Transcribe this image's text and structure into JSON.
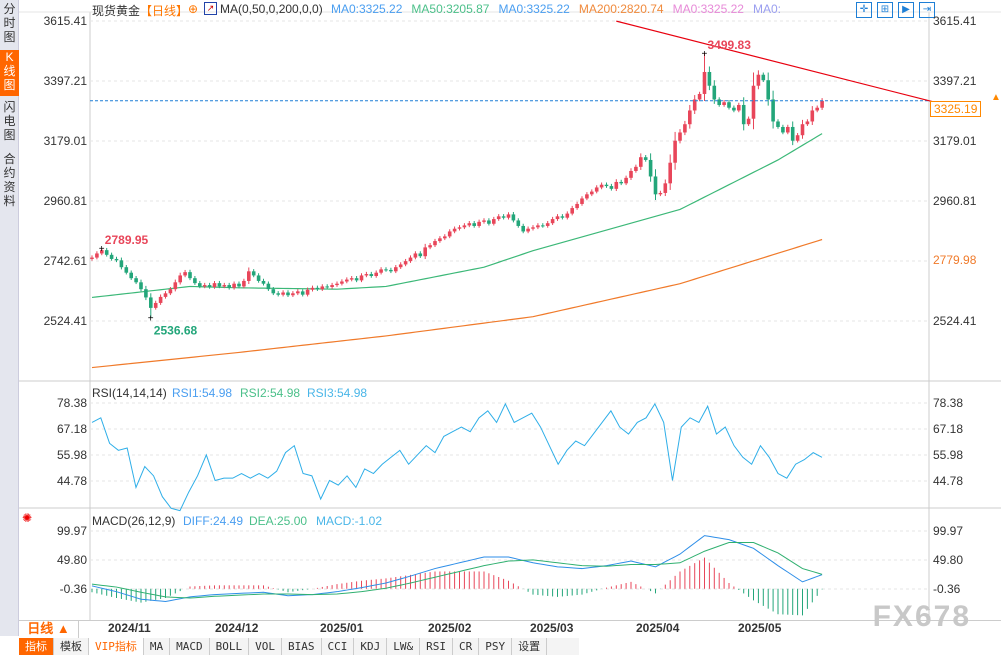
{
  "sidebar": {
    "items": [
      {
        "label": "分时图",
        "active": false
      },
      {
        "label": "K线图",
        "active": true
      },
      {
        "label": "闪电图",
        "active": false
      },
      {
        "label": "合约资料",
        "active": false
      }
    ]
  },
  "header": {
    "symbol": "现货黄金",
    "period": "【日线】",
    "indicator": "MA(0,50,0,200,0,0)",
    "ma_values": [
      {
        "text": "MA0:3325.22",
        "color": "#4a9ef0"
      },
      {
        "text": "MA50:3205.87",
        "color": "#4cc08a"
      },
      {
        "text": "MA0:3325.22",
        "color": "#4a9ef0"
      },
      {
        "text": "MA200:2820.74",
        "color": "#f08a3c"
      },
      {
        "text": "MA0:3325.22",
        "color": "#e78ad8"
      },
      {
        "text": "MA0:",
        "color": "#9a9ef0"
      }
    ],
    "toolbar_icons": [
      "crosshair-icon",
      "zoom-range-icon",
      "play-icon",
      "scroll-end-icon"
    ]
  },
  "price_axis": {
    "labels": [
      "3615.41",
      "3397.21",
      "3179.01",
      "2960.81",
      "2742.61",
      "2524.41"
    ],
    "right_ma": "2779.98",
    "current_price": "3325.19"
  },
  "rsi": {
    "title": "RSI(14,14,14)",
    "v1": "RSI1:54.98",
    "v2": "RSI2:54.98",
    "v3": "RSI3:54.98",
    "labels": [
      "78.38",
      "67.18",
      "55.98",
      "44.78"
    ]
  },
  "macd": {
    "title": "MACD(26,12,9)",
    "diff": "DIFF:24.49",
    "dea": "DEA:25.00",
    "macd": "MACD:-1.02",
    "labels": [
      "99.97",
      "49.80",
      "-0.36"
    ]
  },
  "dates": [
    "2024/11",
    "2024/12",
    "2025/01",
    "2025/02",
    "2025/03",
    "2025/04",
    "2025/05"
  ],
  "period_selector": "日线 ▲",
  "bottom_tabs": [
    "指标",
    "模板",
    "VIP指标",
    "MA",
    "MACD",
    "BOLL",
    "VOL",
    "BIAS",
    "CCI",
    "KDJ",
    "LW&",
    "RSI",
    "CR",
    "PSY",
    "设置"
  ],
  "watermark": "FX678",
  "colors": {
    "up": "#e8465a",
    "down": "#23a67a",
    "ma50": "#3cb878",
    "ma200": "#f07a2a",
    "trend": "#e8000f",
    "rsi": "#2eaee8",
    "diff": "#2e8ee8",
    "dea": "#30b070",
    "price_line": "#1e7fd6"
  },
  "chart_data": {
    "type": "candlestick",
    "ylim": [
      2524.41,
      3615.41
    ],
    "closes": [
      2755,
      2770,
      2782,
      2765,
      2750,
      2745,
      2720,
      2700,
      2680,
      2665,
      2640,
      2610,
      2572,
      2590,
      2612,
      2625,
      2640,
      2665,
      2690,
      2702,
      2680,
      2662,
      2650,
      2655,
      2648,
      2662,
      2650,
      2655,
      2645,
      2660,
      2650,
      2670,
      2705,
      2690,
      2670,
      2660,
      2640,
      2625,
      2620,
      2628,
      2618,
      2625,
      2632,
      2620,
      2638,
      2645,
      2640,
      2650,
      2648,
      2655,
      2660,
      2668,
      2675,
      2680,
      2672,
      2690,
      2695,
      2688,
      2700,
      2712,
      2710,
      2705,
      2720,
      2730,
      2742,
      2755,
      2770,
      2760,
      2792,
      2800,
      2815,
      2825,
      2832,
      2850,
      2860,
      2865,
      2872,
      2880,
      2870,
      2885,
      2890,
      2878,
      2895,
      2905,
      2900,
      2912,
      2890,
      2870,
      2850,
      2860,
      2865,
      2872,
      2870,
      2880,
      2895,
      2905,
      2900,
      2915,
      2935,
      2950,
      2970,
      2985,
      2995,
      3010,
      3020,
      3015,
      3005,
      3030,
      3025,
      3045,
      3070,
      3085,
      3120,
      3110,
      3050,
      2985,
      2990,
      3025,
      3100,
      3180,
      3210,
      3240,
      3290,
      3330,
      3350,
      3430,
      3380,
      3330,
      3310,
      3320,
      3300,
      3290,
      3310,
      3240,
      3260,
      3380,
      3420,
      3400,
      3330,
      3250,
      3230,
      3210,
      3230,
      3180,
      3200,
      3240,
      3250,
      3290,
      3300,
      3325
    ],
    "ma50": [
      [
        0,
        2610
      ],
      [
        20,
        2650
      ],
      [
        30,
        2645
      ],
      [
        50,
        2640
      ],
      [
        60,
        2650
      ],
      [
        80,
        2720
      ],
      [
        90,
        2780
      ],
      [
        100,
        2830
      ],
      [
        110,
        2880
      ],
      [
        120,
        2930
      ],
      [
        130,
        3020
      ],
      [
        140,
        3110
      ],
      [
        149,
        3205.87
      ]
    ],
    "ma200": [
      [
        0,
        2355
      ],
      [
        30,
        2410
      ],
      [
        60,
        2470
      ],
      [
        90,
        2540
      ],
      [
        120,
        2660
      ],
      [
        149,
        2820.74
      ]
    ],
    "annotations": [
      {
        "index": 125,
        "value": 3499.83,
        "label": "3499.83"
      },
      {
        "index": 2,
        "value": 2789.95,
        "label": "2789.95"
      },
      {
        "index": 12,
        "value": 2536.68,
        "label": "2536.68"
      }
    ],
    "trendline": [
      [
        107,
        3615
      ],
      [
        172,
        3320
      ]
    ],
    "rsi": [
      70,
      72,
      61,
      58,
      59,
      42,
      51,
      47,
      38,
      33,
      32,
      40,
      47,
      56,
      45,
      46,
      46,
      48,
      46,
      48,
      46,
      49,
      57,
      60,
      48,
      47,
      37,
      45,
      43,
      47,
      42,
      50,
      48,
      52,
      55,
      58,
      52,
      56,
      60,
      57,
      64,
      66,
      68,
      66,
      72,
      75,
      70,
      78,
      70,
      72,
      74,
      68,
      60,
      52,
      58,
      62,
      60,
      65,
      70,
      75,
      68,
      65,
      70,
      72,
      78,
      70,
      45,
      68,
      72,
      70,
      77,
      65,
      68,
      60,
      55,
      52,
      60,
      55,
      48,
      46,
      52,
      54,
      57,
      55
    ],
    "macd_index": [
      0,
      5,
      10,
      15,
      20,
      25,
      30,
      35,
      40,
      45,
      50,
      55,
      60,
      65,
      70,
      75,
      80,
      85,
      90,
      95,
      100,
      105,
      110,
      115,
      120,
      125,
      130,
      135,
      140,
      145,
      149
    ],
    "diff": [
      5,
      -5,
      -18,
      -22,
      -14,
      -10,
      -8,
      -6,
      -12,
      -10,
      -5,
      2,
      10,
      22,
      35,
      45,
      55,
      55,
      45,
      38,
      35,
      40,
      48,
      38,
      60,
      92,
      85,
      70,
      40,
      12,
      24.49
    ],
    "dea": [
      8,
      3,
      -6,
      -14,
      -16,
      -13,
      -11,
      -9,
      -9,
      -10,
      -9,
      -5,
      1,
      10,
      20,
      30,
      40,
      48,
      50,
      45,
      40,
      39,
      42,
      42,
      45,
      65,
      80,
      80,
      62,
      35,
      25.0
    ]
  }
}
